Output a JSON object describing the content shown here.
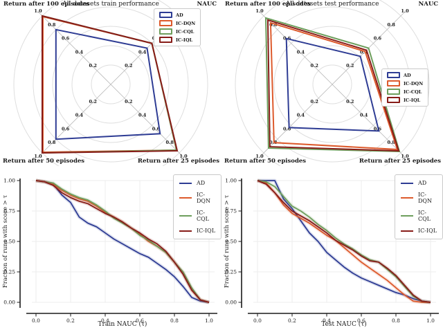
{
  "palette": {
    "AD": "#2e3c94",
    "IC-DQN": "#dd5a2c",
    "IC-CQL": "#6d9e5c",
    "IC-IQL": "#871c18"
  },
  "style_colors": {
    "ring": "#dedede",
    "spoke": "#b9b9b9",
    "grid": "#ececec",
    "spine": "#1a1a1a"
  },
  "chart_data": [
    {
      "id": "radar-train",
      "type": "radar",
      "title": "All datasets train performance",
      "axes": [
        "Return after 100 episodes",
        "NAUC",
        "Return after 25 episodes",
        "Return after 50 episodes"
      ],
      "axes_layout": [
        "top-left",
        "top-right",
        "bottom-right",
        "bottom-left"
      ],
      "tick_values": [
        0.2,
        0.4,
        0.6,
        0.8,
        1.0
      ],
      "range": [
        0,
        1
      ],
      "legend_position": "upper right",
      "series": [
        {
          "name": "AD",
          "values": [
            0.8,
            0.53,
            0.72,
            0.8
          ]
        },
        {
          "name": "IC-DQN",
          "values": [
            0.99,
            0.6,
            0.96,
            0.99
          ]
        },
        {
          "name": "IC-CQL",
          "values": [
            1.0,
            0.6,
            0.96,
            1.0
          ]
        },
        {
          "name": "IC-IQL",
          "values": [
            1.0,
            0.6,
            0.97,
            1.0
          ]
        }
      ]
    },
    {
      "id": "radar-test",
      "type": "radar",
      "title": "All datasets test performance",
      "axes": [
        "Return after 100 episodes",
        "NAUC",
        "Return after 25 episodes",
        "Return after 50 episodes"
      ],
      "axes_layout": [
        "top-left",
        "top-right",
        "bottom-right",
        "bottom-left"
      ],
      "tick_values": [
        0.2,
        0.4,
        0.6,
        0.8,
        1.0
      ],
      "range": [
        0,
        1
      ],
      "legend_position": "center right",
      "series": [
        {
          "name": "AD",
          "values": [
            0.67,
            0.41,
            0.68,
            0.63
          ]
        },
        {
          "name": "IC-DQN",
          "values": [
            0.9,
            0.48,
            0.95,
            0.85
          ]
        },
        {
          "name": "IC-CQL",
          "values": [
            0.97,
            0.53,
            0.98,
            0.93
          ]
        },
        {
          "name": "IC-IQL",
          "values": [
            0.94,
            0.5,
            0.97,
            0.91
          ]
        }
      ]
    },
    {
      "id": "ecdf-train",
      "type": "line",
      "xlabel": "Train NAUC (τ)",
      "ylabel": "Fraction of runs with score > τ",
      "xticks": [
        "0.0",
        "0.2",
        "0.4",
        "0.6",
        "0.8",
        "1.0"
      ],
      "yticks": [
        "0.00",
        "0.25",
        "0.50",
        "0.75",
        "1.00"
      ],
      "xlim": [
        0,
        1
      ],
      "ylim": [
        0,
        1
      ],
      "grid": true,
      "legend_position": "upper right",
      "x": [
        0,
        0.05,
        0.1,
        0.15,
        0.2,
        0.25,
        0.3,
        0.35,
        0.4,
        0.45,
        0.5,
        0.55,
        0.6,
        0.65,
        0.7,
        0.75,
        0.8,
        0.85,
        0.9,
        0.95,
        1.0
      ],
      "series": [
        {
          "name": "AD",
          "y": [
            1.0,
            0.99,
            0.97,
            0.88,
            0.82,
            0.7,
            0.65,
            0.62,
            0.57,
            0.52,
            0.48,
            0.44,
            0.4,
            0.37,
            0.32,
            0.27,
            0.21,
            0.13,
            0.04,
            0.01,
            0.0
          ]
        },
        {
          "name": "IC-DQN",
          "y": [
            1.0,
            0.99,
            0.97,
            0.92,
            0.88,
            0.85,
            0.83,
            0.79,
            0.74,
            0.7,
            0.66,
            0.61,
            0.56,
            0.5,
            0.46,
            0.41,
            0.33,
            0.24,
            0.1,
            0.02,
            0.0
          ]
        },
        {
          "name": "IC-CQL",
          "y": [
            1.0,
            0.99,
            0.98,
            0.93,
            0.89,
            0.86,
            0.84,
            0.8,
            0.75,
            0.69,
            0.65,
            0.61,
            0.55,
            0.51,
            0.46,
            0.41,
            0.33,
            0.25,
            0.12,
            0.02,
            0.0
          ]
        },
        {
          "name": "IC-IQL",
          "y": [
            1.0,
            0.99,
            0.96,
            0.9,
            0.86,
            0.83,
            0.81,
            0.77,
            0.73,
            0.7,
            0.66,
            0.61,
            0.57,
            0.52,
            0.48,
            0.42,
            0.33,
            0.23,
            0.1,
            0.02,
            0.0
          ]
        }
      ]
    },
    {
      "id": "ecdf-test",
      "type": "line",
      "xlabel": "Test NAUC (τ)",
      "ylabel": "Fraction of runs with score > τ",
      "xticks": [
        "0.0",
        "0.2",
        "0.4",
        "0.6",
        "0.8",
        "1.0"
      ],
      "yticks": [
        "0.00",
        "0.25",
        "0.50",
        "0.75",
        "1.00"
      ],
      "xlim": [
        0,
        1
      ],
      "ylim": [
        0,
        1
      ],
      "grid": true,
      "legend_position": "upper right",
      "x": [
        0,
        0.05,
        0.1,
        0.15,
        0.2,
        0.25,
        0.3,
        0.35,
        0.4,
        0.45,
        0.5,
        0.55,
        0.6,
        0.65,
        0.7,
        0.75,
        0.8,
        0.85,
        0.9,
        0.95,
        1.0
      ],
      "series": [
        {
          "name": "AD",
          "y": [
            1.0,
            1.0,
            1.0,
            0.85,
            0.77,
            0.67,
            0.57,
            0.5,
            0.41,
            0.35,
            0.29,
            0.24,
            0.2,
            0.17,
            0.14,
            0.11,
            0.08,
            0.06,
            0.03,
            0.01,
            0.0
          ]
        },
        {
          "name": "IC-DQN",
          "y": [
            1.0,
            0.98,
            0.9,
            0.8,
            0.73,
            0.69,
            0.65,
            0.6,
            0.55,
            0.51,
            0.45,
            0.39,
            0.33,
            0.28,
            0.23,
            0.18,
            0.12,
            0.06,
            0.01,
            0.0,
            0.0
          ]
        },
        {
          "name": "IC-CQL",
          "y": [
            1.0,
            0.99,
            0.95,
            0.87,
            0.79,
            0.75,
            0.7,
            0.64,
            0.59,
            0.53,
            0.48,
            0.44,
            0.39,
            0.35,
            0.33,
            0.27,
            0.21,
            0.13,
            0.05,
            0.01,
            0.0
          ]
        },
        {
          "name": "IC-IQL",
          "y": [
            1.0,
            0.97,
            0.9,
            0.82,
            0.75,
            0.71,
            0.67,
            0.62,
            0.57,
            0.51,
            0.47,
            0.43,
            0.38,
            0.34,
            0.33,
            0.28,
            0.22,
            0.14,
            0.06,
            0.01,
            0.0
          ]
        }
      ]
    }
  ]
}
